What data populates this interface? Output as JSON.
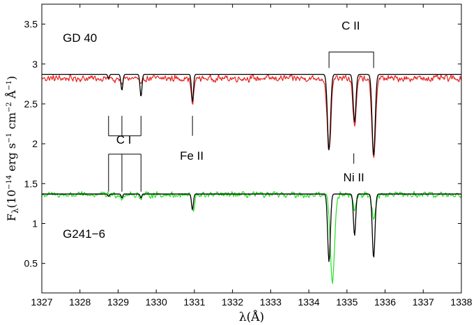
{
  "chart_data": {
    "type": "line",
    "xlabel": "λ(Å)",
    "ylabel": "F_λ(10^−14 erg s^−1 cm^−2 Å^−1)",
    "ylabel_parts": {
      "f": "F",
      "lambda": "λ",
      "open": "(10",
      "exp1": "−14",
      "erg": " erg s",
      "exp2": "−1",
      "cm": " cm",
      "exp3": "−2",
      "ang": " Å",
      "exp4": "−1",
      "close": ")"
    },
    "xlim": [
      1327,
      1338
    ],
    "ylim": [
      0.13,
      3.75
    ],
    "xticks": [
      "1327",
      "1328",
      "1329",
      "1330",
      "1331",
      "1332",
      "1333",
      "1334",
      "1335",
      "1336",
      "1337",
      "1338"
    ],
    "yticks": [
      "0.5",
      "1",
      "1.5",
      "2",
      "2.5",
      "3",
      "3.5"
    ],
    "grid": false,
    "colors": {
      "gd40": "#e8221e",
      "g241": "#22e022",
      "model": "#000000"
    },
    "series": [
      {
        "name": "GD 40 observed",
        "color": "#e8221e",
        "continuum": 2.82,
        "noise": 0.05,
        "lines": [
          [
            1328.9,
            0.05,
            0.03
          ],
          [
            1329.1,
            0.07,
            0.03
          ],
          [
            1329.6,
            0.1,
            0.035
          ],
          [
            1330.95,
            0.32,
            0.035
          ],
          [
            1334.53,
            0.9,
            0.05
          ],
          [
            1335.2,
            0.58,
            0.045
          ],
          [
            1335.7,
            0.98,
            0.05
          ]
        ]
      },
      {
        "name": "GD 40 model",
        "color": "#000000",
        "continuum": 2.87,
        "noise": 0,
        "lines": [
          [
            1328.75,
            0.05,
            0.02
          ],
          [
            1329.1,
            0.2,
            0.025
          ],
          [
            1329.6,
            0.28,
            0.025
          ],
          [
            1330.95,
            0.35,
            0.025
          ],
          [
            1334.53,
            0.95,
            0.04
          ],
          [
            1335.2,
            0.6,
            0.035
          ],
          [
            1335.7,
            1.02,
            0.04
          ]
        ]
      },
      {
        "name": "G241-6 observed",
        "color": "#22e022",
        "continuum": 1.36,
        "noise": 0.045,
        "lines": [
          [
            1329.1,
            0.04,
            0.03
          ],
          [
            1329.6,
            0.04,
            0.03
          ],
          [
            1330.97,
            0.22,
            0.035
          ],
          [
            1334.62,
            1.08,
            0.055
          ],
          [
            1335.2,
            0.2,
            0.04
          ],
          [
            1335.7,
            0.3,
            0.045
          ]
        ]
      },
      {
        "name": "G241-6 model",
        "color": "#000000",
        "continuum": 1.37,
        "noise": 0,
        "lines": [
          [
            1328.75,
            0.03,
            0.02
          ],
          [
            1329.1,
            0.05,
            0.02
          ],
          [
            1329.6,
            0.05,
            0.02
          ],
          [
            1330.95,
            0.2,
            0.025
          ],
          [
            1334.53,
            0.85,
            0.035
          ],
          [
            1335.2,
            0.52,
            0.03
          ],
          [
            1335.7,
            0.8,
            0.035
          ]
        ]
      }
    ],
    "annotations": {
      "label_gd40": "GD 40",
      "label_g241": "G241−6",
      "ci": "C I",
      "feii": "Fe II",
      "cii": "C II",
      "niii": "Ni II"
    },
    "markers": {
      "cii_bracket": {
        "x": [
          1334.53,
          1335.7
        ],
        "y_top": 3.15,
        "y_bottom": 2.95
      },
      "ci_upper": {
        "x": [
          1328.75,
          1329.1,
          1329.6
        ],
        "y_top": 2.35,
        "y_bottom": 2.1
      },
      "ci_lower": {
        "x": [
          1328.75,
          1329.1,
          1329.6
        ],
        "y_top": 1.87,
        "y_bottom": 1.4
      },
      "feii_tick": {
        "x": 1330.95,
        "y_top": 2.35,
        "y_bottom": 2.1
      },
      "feii_lower_tick": {
        "x": 1330.95,
        "y_top": 1.55,
        "y_bottom": 1.38
      },
      "niii_tick": {
        "x": 1335.18,
        "y_top": 1.88,
        "y_bottom": 1.75
      },
      "niii_lower_tick": {
        "x": 1335.18,
        "y_top": 1.5,
        "y_bottom": 1.4
      }
    },
    "label_positions": {
      "label_gd40": [
        1327.55,
        3.28
      ],
      "label_g241": [
        1327.55,
        0.82
      ],
      "ci": [
        1329.15,
        2.0
      ],
      "feii": [
        1330.93,
        1.8
      ],
      "cii": [
        1335.1,
        3.43
      ],
      "niii": [
        1335.18,
        1.53
      ]
    }
  }
}
